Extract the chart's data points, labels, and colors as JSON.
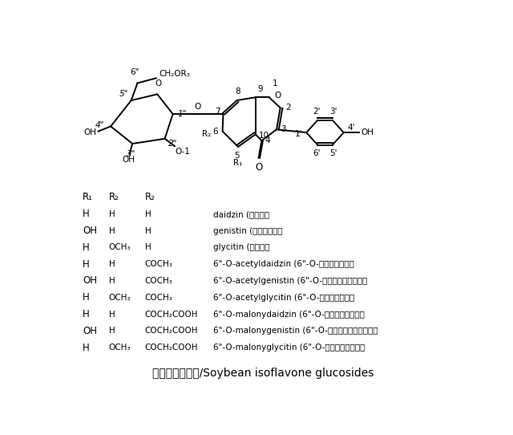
{
  "title": "大豆异黄酮糖苷/Soybean isoflavone glucosides",
  "background_color": "#ffffff",
  "table_rows": [
    [
      "H",
      "H",
      "H",
      "daidzin (大豆苷）"
    ],
    [
      "OH",
      "H",
      "H",
      "genistin (金雀异黄苷）"
    ],
    [
      "H",
      "OCH₃",
      "H",
      "glycitin (黄豆苷）"
    ],
    [
      "H",
      "H",
      "COCH₃",
      "6\"-O-acetyldaidzin (6\"-O-乙酰基大豆苷）"
    ],
    [
      "OH",
      "H",
      "COCH₃",
      "6\"-O-acetylgenistin (6\"-O-乙酰基金雀异黄苷）"
    ],
    [
      "H",
      "OCH₃",
      "COCH₃",
      "6\"-O-acetylglycitin (6\"-O-乙酰基黄豆苷）"
    ],
    [
      "H",
      "H",
      "COCH₂COOH",
      "6\"-O-malonydaidzin (6\"-O-丙二酰基大豆苷）"
    ],
    [
      "OH",
      "H",
      "COCH₂COOH",
      "6\"-O-malonygenistin (6\"-O-丙二酰基金雀异黄苷）"
    ],
    [
      "H",
      "OCH₃",
      "COCH₂COOH",
      "6\"-O-malonyglycitin (6\"-O-丙二酰基黄豆苷）"
    ]
  ],
  "lw": 1.4,
  "fs_label": 7.5,
  "fs_table": 8.5
}
